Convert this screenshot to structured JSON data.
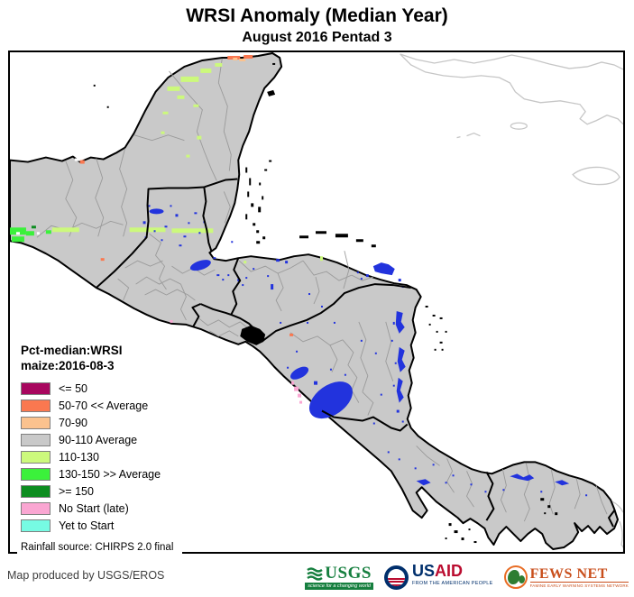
{
  "title": "WRSI Anomaly (Median Year)",
  "subtitle": "August 2016 Pentad 3",
  "legend": {
    "title_line1": "Pct-median:WRSI",
    "title_line2": "maize:2016-08-3",
    "items": [
      {
        "label": "<= 50",
        "color": "#a8075f"
      },
      {
        "label": "50-70 << Average",
        "color": "#fa7850"
      },
      {
        "label": "70-90",
        "color": "#fbc28e"
      },
      {
        "label": "90-110 Average",
        "color": "#c9c9c9"
      },
      {
        "label": "110-130",
        "color": "#ccf97c"
      },
      {
        "label": "130-150 >> Average",
        "color": "#3bf13b"
      },
      {
        "label": ">= 150",
        "color": "#0d8d20"
      },
      {
        "label": "No Start (late)",
        "color": "#faa6d2"
      },
      {
        "label": "Yet to Start",
        "color": "#76fbe3"
      }
    ],
    "source_note": "Rainfall source: CHIRPS 2.0 final"
  },
  "footer": {
    "credit": "Map produced by USGS/EROS",
    "logos": {
      "usgs": {
        "name": "USGS",
        "tagline": "science for a changing world"
      },
      "usaid": {
        "name_us": "US",
        "name_aid": "AID",
        "tagline": "FROM THE AMERICAN PEOPLE"
      },
      "fewsnet": {
        "name": "FEWS NET",
        "tagline": "FAMINE EARLY WARNING SYSTEMS NETWORK"
      }
    }
  },
  "map": {
    "region": "Central America",
    "land_color": "#c9c9c9",
    "water_color": "#2233dd",
    "boundary_color": "#000000",
    "admin_line_color": "#9a9a9a",
    "neighbor_outline_color": "#c6c6c6"
  }
}
